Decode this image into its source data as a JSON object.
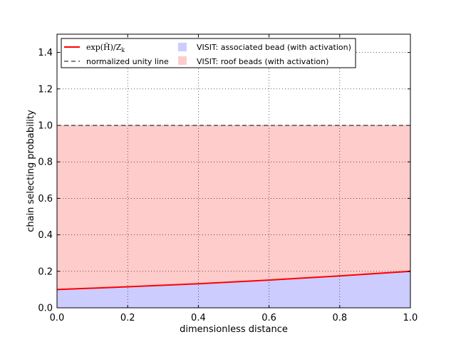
{
  "chart_data": {
    "type": "area",
    "title": "",
    "xlabel": "dimensionless distance",
    "ylabel": "chain selecting probability",
    "xlim": [
      0.0,
      1.0
    ],
    "ylim": [
      0.0,
      1.5
    ],
    "xticks": [
      "0.0",
      "0.2",
      "0.4",
      "0.6",
      "0.8",
      "1.0"
    ],
    "yticks": [
      "0.0",
      "0.2",
      "0.4",
      "0.6",
      "0.8",
      "1.0",
      "1.2",
      "1.4"
    ],
    "grid": true,
    "legend_position": "top",
    "series": [
      {
        "name": "exp(H)/Z_k",
        "kind": "line",
        "color": "#ff0000",
        "x": [
          0.0,
          0.2,
          0.4,
          0.6,
          0.8,
          1.0
        ],
        "y": [
          0.1,
          0.115,
          0.132,
          0.152,
          0.175,
          0.2
        ]
      },
      {
        "name": "normalized unity line",
        "kind": "dashed-line",
        "color": "#000000",
        "x": [
          0.0,
          1.0
        ],
        "y": [
          1.0,
          1.0
        ]
      },
      {
        "name": "VISIT: associated bead (with activation)",
        "kind": "fill",
        "color": "#ccccff",
        "x": [
          0.0,
          0.2,
          0.4,
          0.6,
          0.8,
          1.0
        ],
        "y_lower": [
          0.0,
          0.0,
          0.0,
          0.0,
          0.0,
          0.0
        ],
        "y_upper": [
          0.1,
          0.115,
          0.132,
          0.152,
          0.175,
          0.2
        ]
      },
      {
        "name": "VISIT: roof beads (with activation)",
        "kind": "fill",
        "color": "#ffcccc",
        "x": [
          0.0,
          0.2,
          0.4,
          0.6,
          0.8,
          1.0
        ],
        "y_lower": [
          0.1,
          0.115,
          0.132,
          0.152,
          0.175,
          0.2
        ],
        "y_upper": [
          1.0,
          1.0,
          1.0,
          1.0,
          1.0,
          1.0
        ]
      }
    ],
    "legend": {
      "line_label_math": "exp(H̃)/Z",
      "line_label_sub": "k",
      "dashed_label": "normalized unity line",
      "fill1_label": "VISIT: associated bead (with activation)",
      "fill2_label": "VISIT: roof beads (with activation)"
    }
  }
}
